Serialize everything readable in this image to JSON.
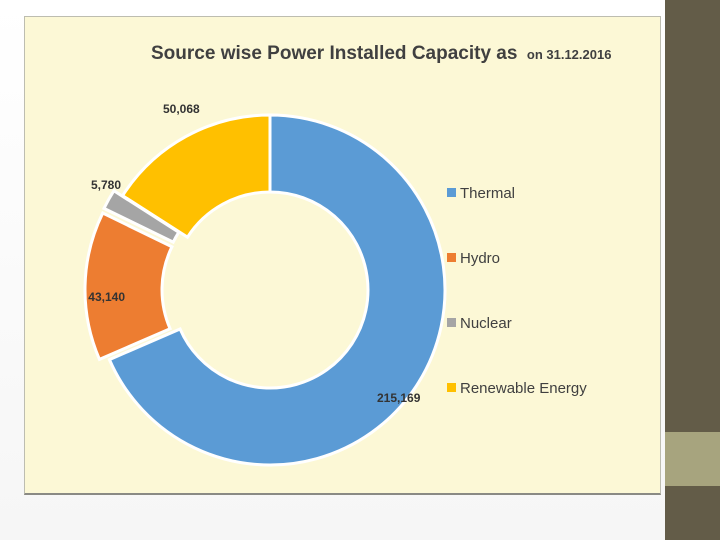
{
  "slide": {
    "side_bar_color": "#635c48",
    "side_accent_color": "#a7a47e",
    "chart_background": "#fcf8d6"
  },
  "chart_data": {
    "type": "pie",
    "variant": "donut",
    "title": "Source wise Power Installed Capacity as",
    "title_date": "on 31.12.2016",
    "categories": [
      "Thermal",
      "Hydro",
      "Nuclear",
      "Renewable Energy"
    ],
    "values": [
      215169,
      43140,
      5780,
      50068
    ],
    "data_labels": [
      "215,169",
      "43,140",
      "5,780",
      "50,068"
    ],
    "colors": [
      "#5b9bd5",
      "#ed7d31",
      "#a5a5a5",
      "#ffc000"
    ],
    "legend_position": "right",
    "exploded_slices": [
      "Hydro",
      "Nuclear"
    ]
  }
}
